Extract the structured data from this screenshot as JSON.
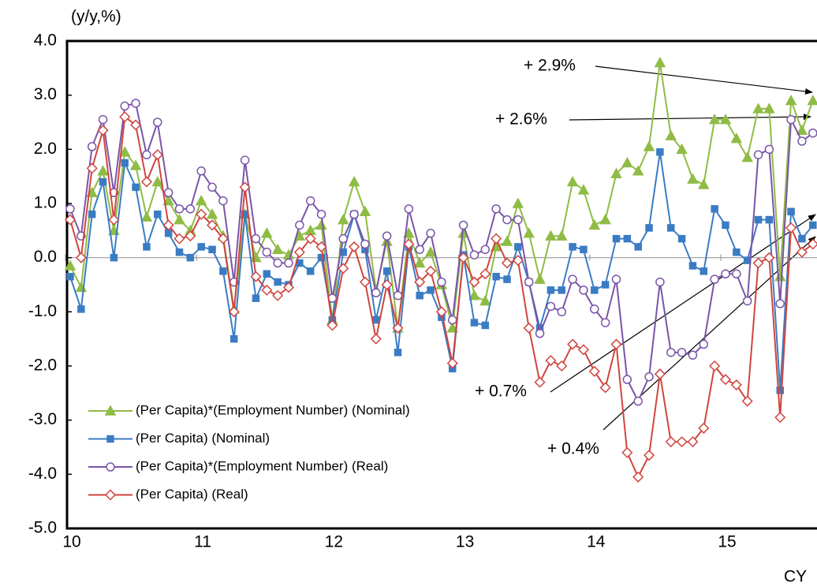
{
  "chart_data": {
    "type": "line",
    "y_label": "(y/y,%)",
    "x_label": "CY",
    "categories": [
      "10",
      null,
      null,
      null,
      null,
      null,
      null,
      null,
      null,
      null,
      null,
      null,
      "11",
      null,
      null,
      null,
      null,
      null,
      null,
      null,
      null,
      null,
      null,
      null,
      "12",
      null,
      null,
      null,
      null,
      null,
      null,
      null,
      null,
      null,
      null,
      null,
      "13",
      null,
      null,
      null,
      null,
      null,
      null,
      null,
      null,
      null,
      null,
      null,
      "14",
      null,
      null,
      null,
      null,
      null,
      null,
      null,
      null,
      null,
      null,
      null,
      "15",
      null,
      null,
      null,
      null,
      null,
      null,
      null,
      null
    ],
    "ylim": [
      -5.0,
      4.0
    ],
    "yticks": [
      {
        "value": 4.0,
        "label": "4.0"
      },
      {
        "value": 3.0,
        "label": "3.0"
      },
      {
        "value": 2.0,
        "label": "2.0"
      },
      {
        "value": 1.0,
        "label": "1.0"
      },
      {
        "value": 0.0,
        "label": "0.0"
      },
      {
        "value": -1.0,
        "label": "-1.0"
      },
      {
        "value": -2.0,
        "label": "-2.0"
      },
      {
        "value": -3.0,
        "label": "-3.0"
      },
      {
        "value": -4.0,
        "label": "-4.0"
      },
      {
        "value": -5.0,
        "label": "-5.0"
      }
    ],
    "grid": false,
    "series": [
      {
        "name": "(Per Capita)*(Employment Number) (Nominal)",
        "color": "#8fbc45",
        "marker": "triangle",
        "values": [
          -0.15,
          -0.55,
          1.2,
          1.6,
          0.5,
          1.95,
          1.7,
          0.75,
          1.4,
          1.05,
          0.7,
          0.5,
          1.05,
          0.8,
          0.4,
          -0.95,
          0.8,
          0.0,
          0.45,
          0.15,
          0.05,
          0.4,
          0.5,
          0.6,
          -1.15,
          0.7,
          1.4,
          0.85,
          -0.6,
          0.3,
          -1.3,
          0.45,
          -0.1,
          0.1,
          -0.5,
          -1.3,
          0.45,
          -0.7,
          -0.8,
          0.2,
          0.3,
          1.0,
          0.45,
          -0.4,
          0.4,
          0.4,
          1.4,
          1.25,
          0.6,
          0.7,
          1.55,
          1.75,
          1.6,
          2.05,
          3.6,
          2.25,
          2.0,
          1.45,
          1.35,
          2.55,
          2.55,
          2.2,
          1.85,
          2.75,
          2.75,
          -0.35,
          2.9,
          2.35,
          2.9
        ]
      },
      {
        "name": "(Per Capita) (Nominal)",
        "color": "#3a7cc4",
        "marker": "square",
        "values": [
          -0.35,
          -0.95,
          0.8,
          1.4,
          0.0,
          1.75,
          1.3,
          0.2,
          0.8,
          0.45,
          0.1,
          0.0,
          0.2,
          0.15,
          -0.25,
          -1.5,
          0.8,
          -0.75,
          -0.3,
          -0.45,
          -0.5,
          -0.1,
          -0.25,
          0.0,
          -1.15,
          0.1,
          0.8,
          0.15,
          -1.15,
          -0.25,
          -1.75,
          0.2,
          -0.7,
          -0.6,
          -1.1,
          -2.05,
          0.05,
          -1.2,
          -1.25,
          -0.35,
          -0.4,
          0.2,
          -0.45,
          -1.3,
          -0.6,
          -0.6,
          0.2,
          0.15,
          -0.6,
          -0.5,
          0.35,
          0.35,
          0.2,
          0.55,
          1.95,
          0.55,
          0.35,
          -0.15,
          -0.25,
          0.9,
          0.6,
          0.1,
          -0.05,
          0.7,
          0.7,
          -2.45,
          0.85,
          0.35,
          0.6
        ]
      },
      {
        "name": "(Per Capita)*(Employment Number) (Real)",
        "color": "#7a55a8",
        "marker": "circle",
        "values": [
          0.9,
          0.4,
          2.05,
          2.55,
          1.2,
          2.8,
          2.85,
          1.9,
          2.5,
          1.2,
          0.9,
          0.9,
          1.6,
          1.3,
          1.05,
          -0.45,
          1.8,
          0.35,
          0.1,
          -0.1,
          -0.1,
          0.6,
          1.05,
          0.8,
          -0.75,
          0.35,
          0.8,
          0.25,
          -0.65,
          0.4,
          -0.7,
          0.9,
          0.15,
          0.45,
          -0.45,
          -1.15,
          0.6,
          0.05,
          0.15,
          0.9,
          0.7,
          0.7,
          -0.45,
          -1.4,
          -0.9,
          -1.0,
          -0.4,
          -0.6,
          -0.95,
          -1.2,
          -0.4,
          -2.25,
          -2.65,
          -2.2,
          -0.45,
          -1.75,
          -1.75,
          -1.8,
          -1.6,
          -0.4,
          -0.3,
          -0.3,
          -0.8,
          1.9,
          2.0,
          -0.85,
          2.55,
          2.15,
          2.3
        ]
      },
      {
        "name": "(Per Capita) (Real)",
        "color": "#d0453f",
        "marker": "diamond",
        "values": [
          0.7,
          0.0,
          1.65,
          2.35,
          0.7,
          2.6,
          2.45,
          1.4,
          1.9,
          0.6,
          0.35,
          0.4,
          0.8,
          0.6,
          0.35,
          -1.0,
          1.3,
          -0.35,
          -0.6,
          -0.7,
          -0.55,
          0.1,
          0.35,
          0.2,
          -1.25,
          -0.2,
          0.2,
          -0.45,
          -1.5,
          -0.5,
          -1.3,
          0.25,
          -0.45,
          -0.25,
          -1.0,
          -1.95,
          0.0,
          -0.45,
          -0.3,
          0.35,
          -0.1,
          -0.05,
          -1.3,
          -2.3,
          -1.9,
          -2.0,
          -1.6,
          -1.7,
          -2.1,
          -2.4,
          -1.6,
          -3.6,
          -4.05,
          -3.65,
          -2.15,
          -3.4,
          -3.4,
          -3.4,
          -3.15,
          -2.0,
          -2.25,
          -2.35,
          -2.65,
          -0.1,
          0.0,
          -2.95,
          0.55,
          0.1,
          0.25
        ]
      }
    ],
    "annotations": [
      "+ 2.9%",
      "+ 2.6%",
      "+ 0.7%",
      "+ 0.4%"
    ]
  }
}
